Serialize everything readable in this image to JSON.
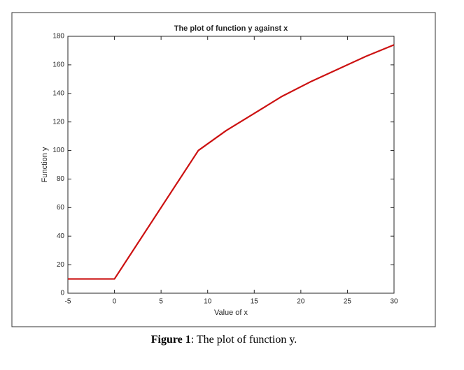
{
  "chart_data": {
    "type": "line",
    "title": "The plot of function y against x",
    "x_label": "Value of x",
    "y_label": "Function y",
    "x": [
      -5,
      0,
      9,
      12,
      15,
      18,
      21,
      24,
      27,
      30
    ],
    "values": [
      10,
      10,
      100,
      114,
      126,
      138,
      148,
      157,
      166,
      174
    ],
    "color": "#cc1111",
    "xlim": [
      -5,
      30
    ],
    "xticks": [
      -5,
      0,
      5,
      10,
      15,
      20,
      25,
      30
    ],
    "ylim": [
      0,
      180
    ],
    "yticks": [
      0,
      20,
      40,
      60,
      80,
      100,
      120,
      140,
      160,
      180
    ]
  },
  "caption": {
    "label": "Figure 1",
    "text": ": The plot of function y."
  }
}
